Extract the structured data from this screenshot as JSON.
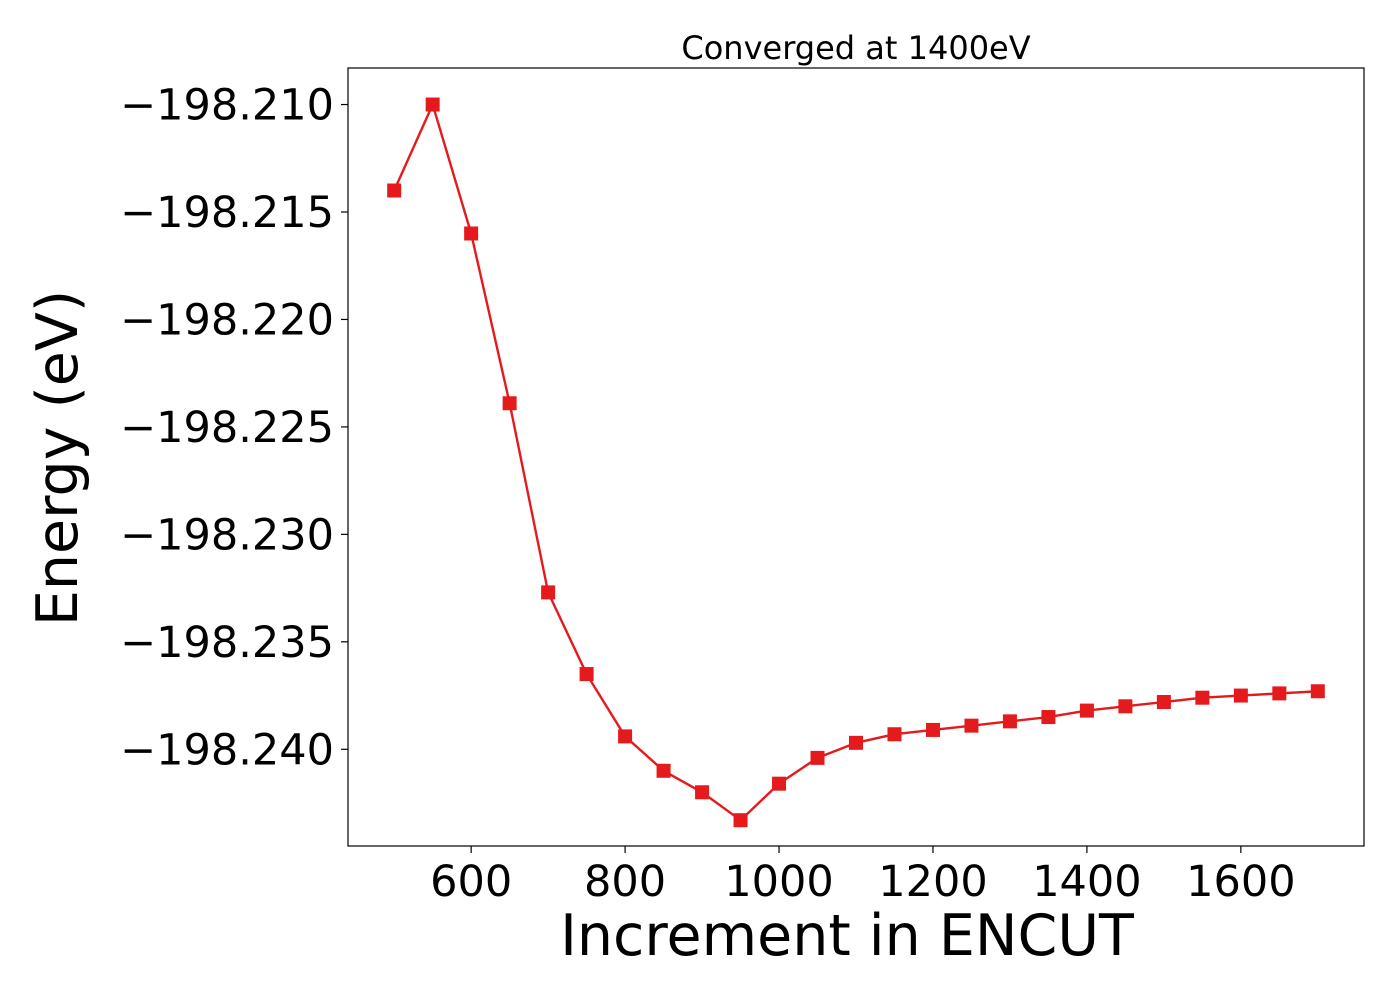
{
  "chart_data": {
    "type": "line",
    "title": "Converged at 1400eV",
    "xlabel": "Increment in ENCUT",
    "ylabel": "Energy (eV)",
    "xlim": [
      440,
      1760
    ],
    "ylim": [
      -198.2445,
      -198.2083
    ],
    "xticks": [
      600,
      800,
      1000,
      1200,
      1400,
      1600
    ],
    "xtick_labels": [
      "600",
      "800",
      "1000",
      "1200",
      "1400",
      "1600"
    ],
    "yticks": [
      -198.21,
      -198.215,
      -198.22,
      -198.225,
      -198.23,
      -198.235,
      -198.24
    ],
    "ytick_labels": [
      "−198.210",
      "−198.215",
      "−198.220",
      "−198.225",
      "−198.230",
      "−198.235",
      "−198.240"
    ],
    "grid": false,
    "legend": "none",
    "series": [
      {
        "color": "#e41a1c",
        "marker": "square",
        "x": [
          500,
          550,
          600,
          650,
          700,
          750,
          800,
          850,
          900,
          950,
          1000,
          1050,
          1100,
          1150,
          1200,
          1250,
          1300,
          1350,
          1400,
          1450,
          1500,
          1550,
          1600,
          1650,
          1700
        ],
        "y": [
          -198.214,
          -198.21,
          -198.216,
          -198.2239,
          -198.2327,
          -198.2365,
          -198.2394,
          -198.241,
          -198.242,
          -198.2433,
          -198.2416,
          -198.2404,
          -198.2397,
          -198.2393,
          -198.2391,
          -198.2389,
          -198.2387,
          -198.2385,
          -198.2382,
          -198.238,
          -198.2378,
          -198.2376,
          -198.2375,
          -198.2374,
          -198.2373
        ]
      }
    ]
  }
}
